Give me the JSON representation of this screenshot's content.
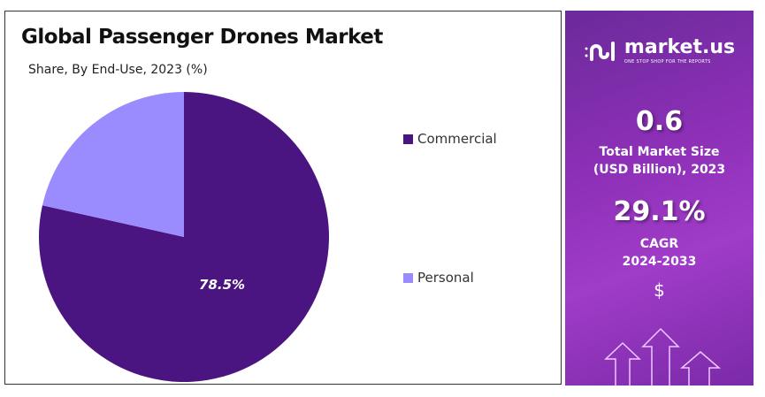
{
  "chart_data": {
    "type": "pie",
    "title": "Global Passenger Drones Market",
    "subtitle": "Share, By End-Use, 2023 (%)",
    "categories": [
      "Commercial",
      "Personal"
    ],
    "values": [
      78.5,
      21.5
    ],
    "data_labels": [
      "78.5%",
      ""
    ],
    "colors": [
      "#4a1580",
      "#9a8cff"
    ],
    "legend_position": "right"
  },
  "sidebar": {
    "logo_name": "market.us",
    "logo_tagline": "ONE STOP SHOP FOR THE REPORTS",
    "market_size_value": "0.6",
    "market_size_label_1": "Total Market Size",
    "market_size_label_2": "(USD Billion), 2023",
    "cagr_value": "29.1%",
    "cagr_label_1": "CAGR",
    "cagr_label_2": "2024-2033",
    "dollar_symbol": "$"
  }
}
